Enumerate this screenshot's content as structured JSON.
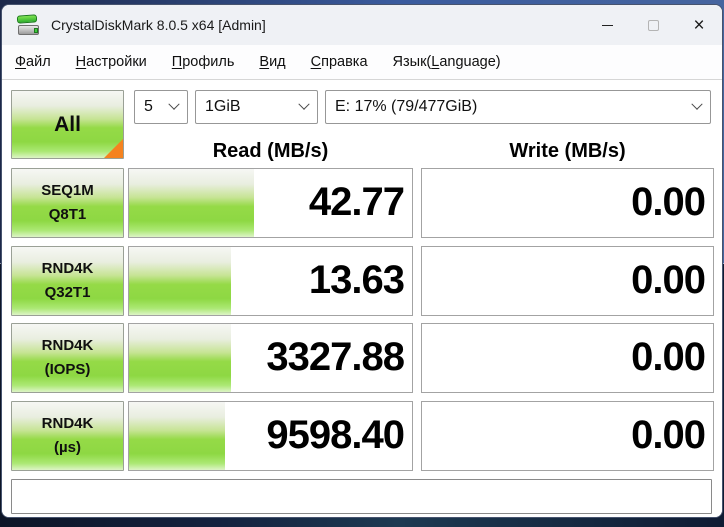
{
  "window": {
    "title": "CrystalDiskMark 8.0.5 x64 [Admin]",
    "icons": {
      "app_icon": "disk-benchmark",
      "minimize": "horizontal-line",
      "maximize": "square-outline",
      "close_glyph": "×",
      "combo_chevron": "chevron-down"
    }
  },
  "menu": {
    "items": [
      {
        "label": "Файл",
        "pre": "",
        "key": "Ф",
        "post": "айл"
      },
      {
        "label": "Настройки",
        "pre": "",
        "key": "Н",
        "post": "астройки"
      },
      {
        "label": "Профиль",
        "pre": "",
        "key": "П",
        "post": "рофиль"
      },
      {
        "label": "Вид",
        "pre": "",
        "key": "В",
        "post": "ид"
      },
      {
        "label": "Справка",
        "pre": "",
        "key": "С",
        "post": "правка"
      },
      {
        "label": "Язык(Language)",
        "pre": "Язык(",
        "key": "L",
        "post": "anguage)"
      }
    ]
  },
  "toolbar": {
    "all_button_label": "All",
    "test_count": {
      "value": "5"
    },
    "test_size": {
      "value": "1GiB"
    },
    "drive": {
      "value": "E: 17% (79/477GiB)"
    }
  },
  "columns": {
    "read_header": "Read (MB/s)",
    "write_header": "Write (MB/s)"
  },
  "rows": [
    {
      "label_line1": "SEQ1M",
      "label_line2": "Q8T1",
      "read": {
        "value": "42.77",
        "bar_percent": 44
      },
      "write": {
        "value": "0.00",
        "bar_percent": 0
      }
    },
    {
      "label_line1": "RND4K",
      "label_line2": "Q32T1",
      "read": {
        "value": "13.63",
        "bar_percent": 36
      },
      "write": {
        "value": "0.00",
        "bar_percent": 0
      }
    },
    {
      "label_line1": "RND4K",
      "label_line2": "(IOPS)",
      "read": {
        "value": "3327.88",
        "bar_percent": 36
      },
      "write": {
        "value": "0.00",
        "bar_percent": 0
      }
    },
    {
      "label_line1": "RND4K",
      "label_line2": "(µs)",
      "read": {
        "value": "9598.40",
        "bar_percent": 34
      },
      "write": {
        "value": "0.00",
        "bar_percent": 0
      }
    }
  ],
  "comment": {
    "value": ""
  },
  "colors": {
    "accent_green": "#8ed843",
    "orange_corner": "#f5821f",
    "titlebar_bg": "#eff1f5",
    "cell_border": "#a3a3a3"
  }
}
